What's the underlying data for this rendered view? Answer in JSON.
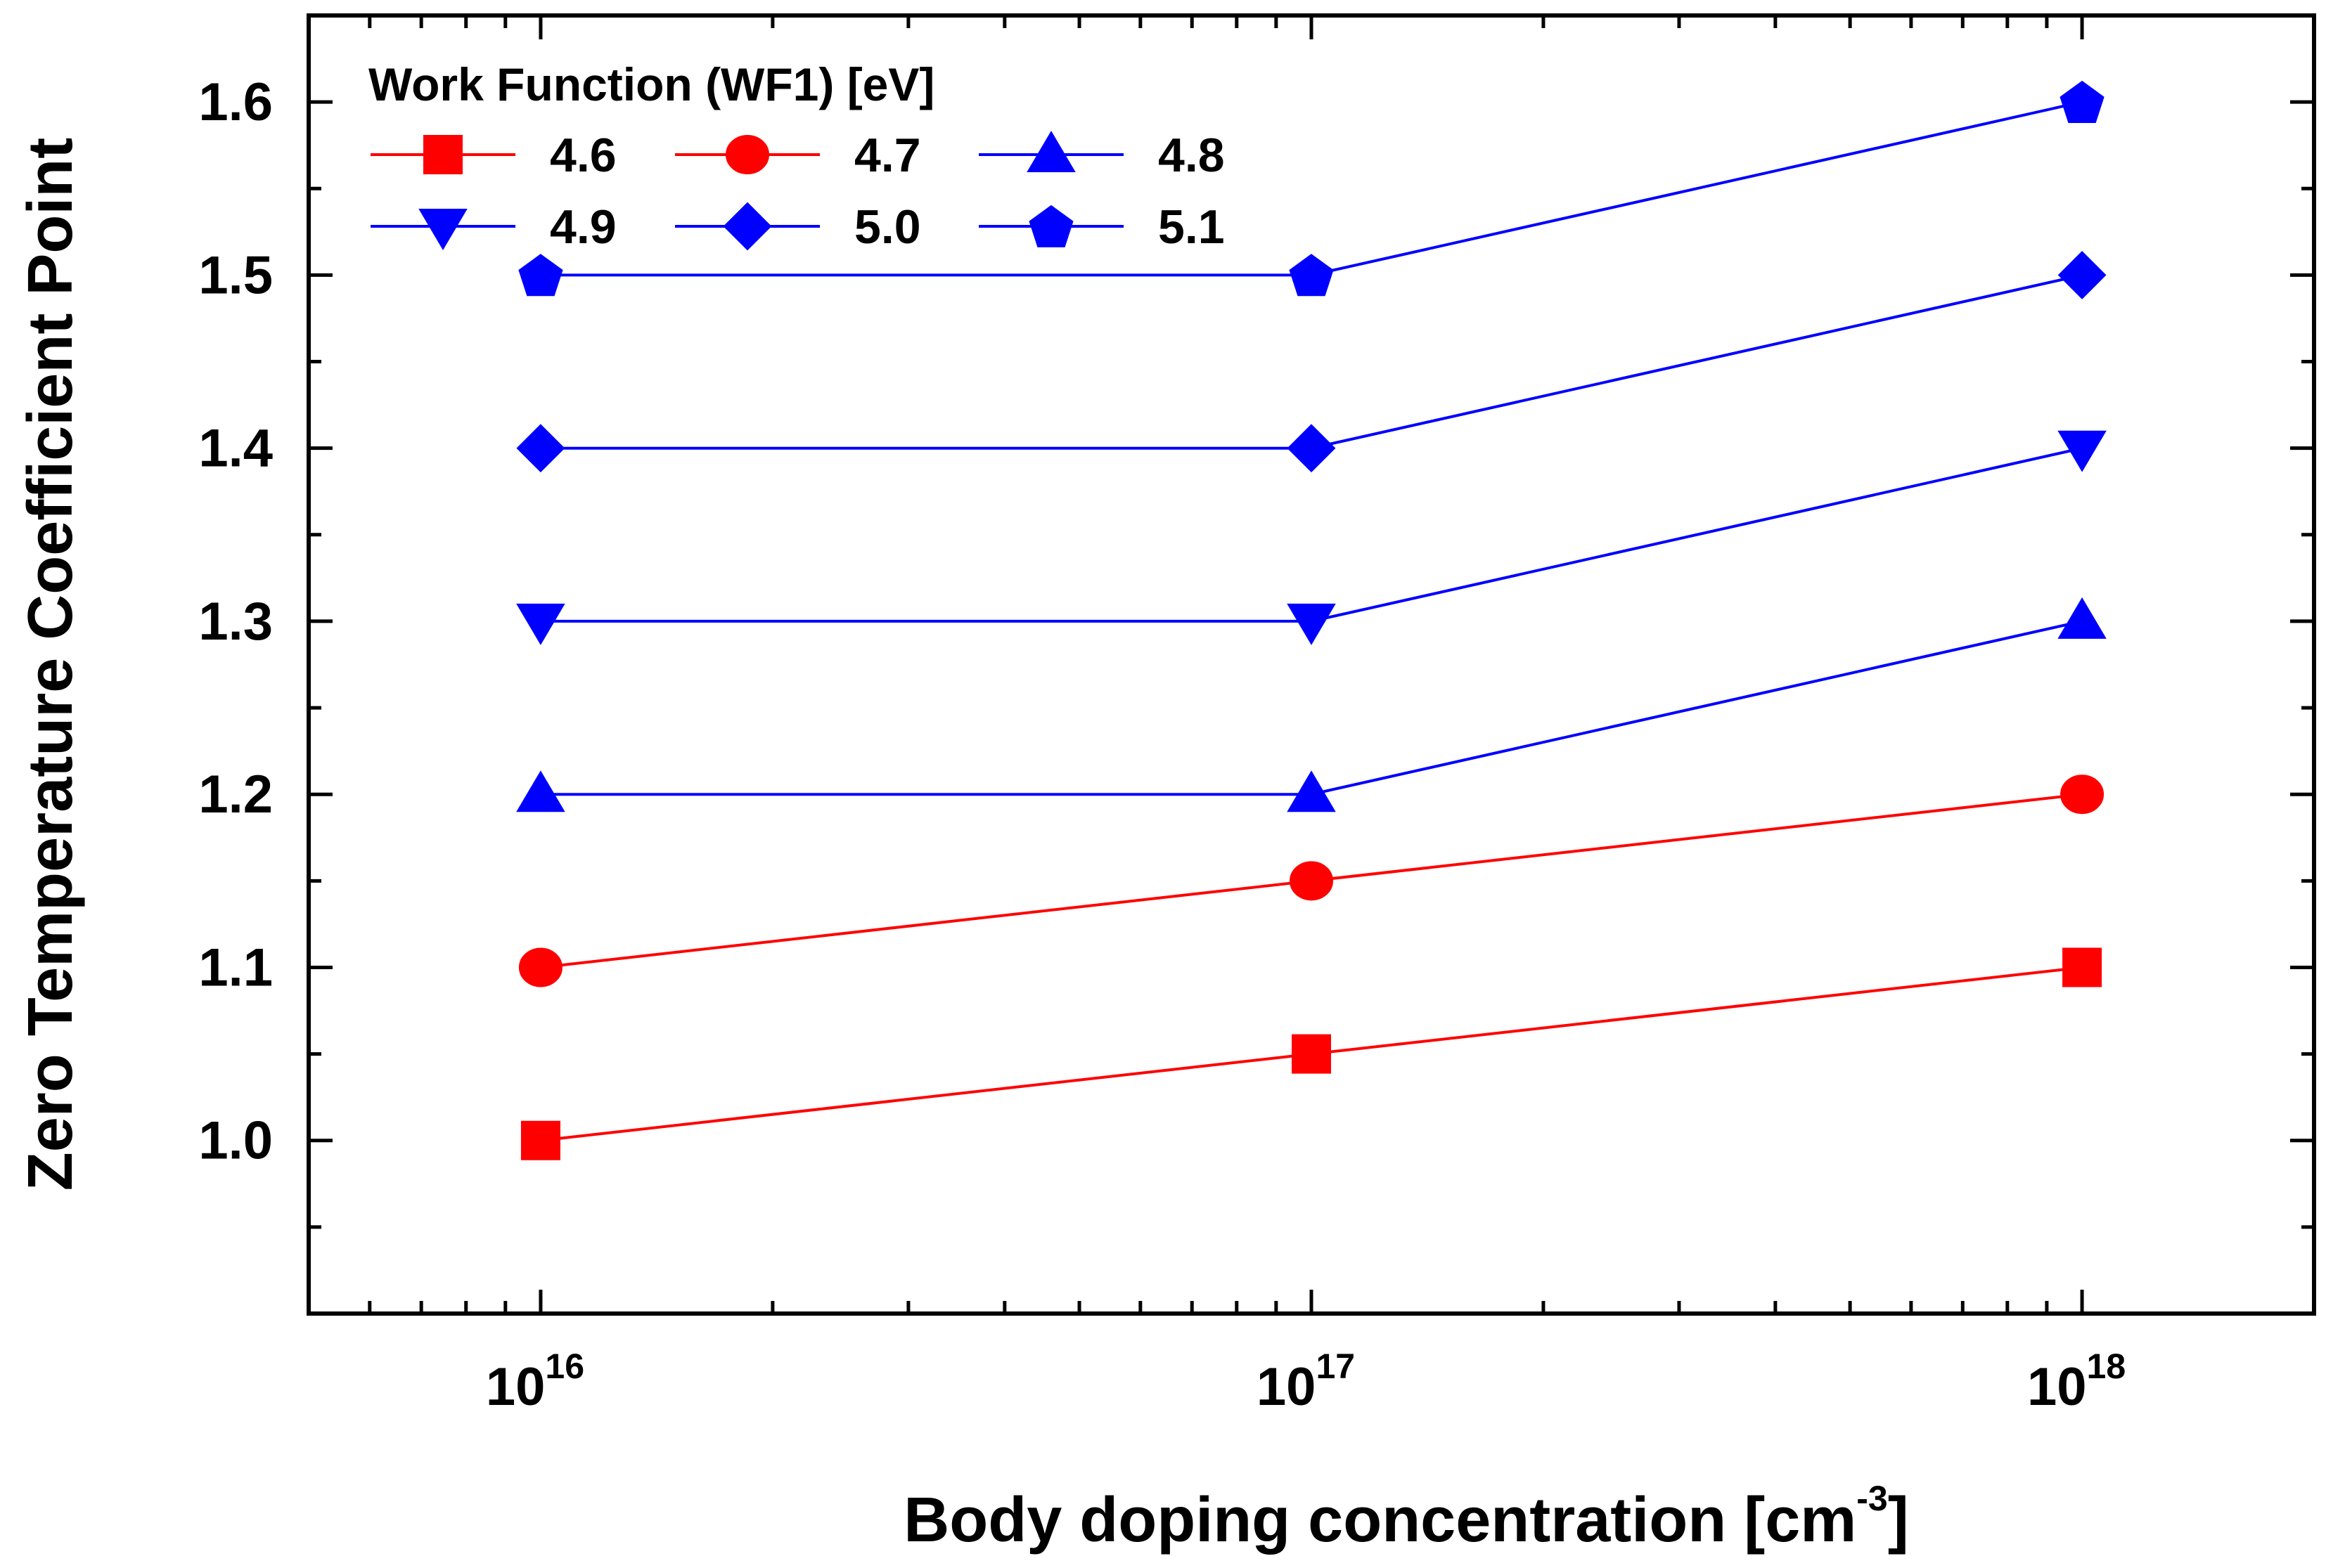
{
  "chart_data": {
    "type": "line",
    "x_scale": "log",
    "x": [
      1e+16,
      1e+17,
      1e+18
    ],
    "x_tick_labels": [
      {
        "base": "10",
        "exp": "16"
      },
      {
        "base": "10",
        "exp": "17"
      },
      {
        "base": "10",
        "exp": "18"
      }
    ],
    "xlim": [
      5000000000000000.0,
      2e+18
    ],
    "ylim": [
      0.9,
      1.65
    ],
    "y_ticks": [
      1.0,
      1.1,
      1.2,
      1.3,
      1.4,
      1.5,
      1.6
    ],
    "y_tick_labels": [
      "1.0",
      "1.1",
      "1.2",
      "1.3",
      "1.4",
      "1.5",
      "1.6"
    ],
    "xlabel": {
      "main": "Body doping concentration [cm",
      "sup": "-3",
      "end": "]"
    },
    "ylabel": "Zero Temperature Coefficient Point",
    "legend": {
      "title": "Work Function (WF1) [eV]",
      "placement": "top-left",
      "columns": 3
    },
    "grid": false,
    "series": [
      {
        "name": "4.6",
        "color": "#ff0000",
        "marker": "square",
        "values": [
          1.0,
          1.05,
          1.1
        ]
      },
      {
        "name": "4.7",
        "color": "#ff0000",
        "marker": "circle",
        "values": [
          1.1,
          1.15,
          1.2
        ]
      },
      {
        "name": "4.8",
        "color": "#0000ff",
        "marker": "triangle-up",
        "values": [
          1.2,
          1.2,
          1.3
        ]
      },
      {
        "name": "4.9",
        "color": "#0000ff",
        "marker": "triangle-down",
        "values": [
          1.3,
          1.3,
          1.4
        ]
      },
      {
        "name": "5.0",
        "color": "#0000ff",
        "marker": "diamond",
        "values": [
          1.4,
          1.4,
          1.5
        ]
      },
      {
        "name": "5.1",
        "color": "#0000ff",
        "marker": "pentagon",
        "values": [
          1.5,
          1.5,
          1.6
        ]
      }
    ]
  }
}
